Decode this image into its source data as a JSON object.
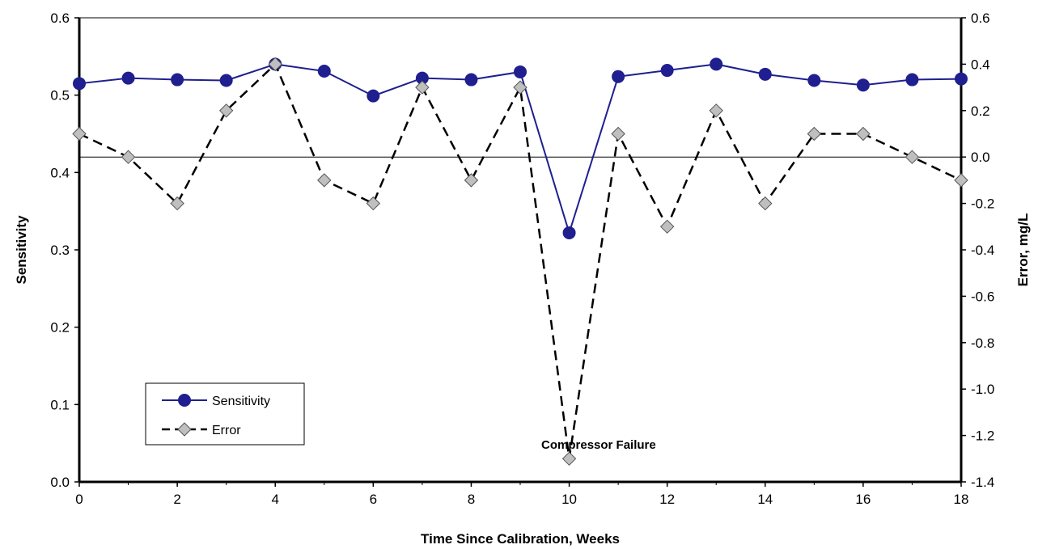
{
  "chart_data": {
    "type": "line",
    "xlabel": "Time Since Calibration, Weeks",
    "ylabel_left": "Sensitivity",
    "ylabel_right": "Error, mg/L",
    "xlim": [
      0,
      18
    ],
    "ylim_left": [
      0.0,
      0.6
    ],
    "ylim_right": [
      -1.4,
      0.6
    ],
    "x_ticks": [
      "0",
      "2",
      "4",
      "6",
      "8",
      "10",
      "12",
      "14",
      "16",
      "18"
    ],
    "y_left_ticks": [
      "0.0",
      "0.1",
      "0.2",
      "0.3",
      "0.4",
      "0.5",
      "0.6"
    ],
    "y_right_ticks": [
      "-1.4",
      "-1.2",
      "-1.0",
      "-0.8",
      "-0.6",
      "-0.4",
      "-0.2",
      "0.0",
      "0.2",
      "0.4",
      "0.6"
    ],
    "grid": false,
    "legend_position": "lower-left",
    "series": [
      {
        "name": "Sensitivity",
        "axis": "left",
        "color": "#1f1f8f",
        "marker": "circle",
        "line": "solid",
        "x": [
          0,
          1,
          2,
          3,
          4,
          5,
          6,
          7,
          8,
          9,
          10,
          11,
          12,
          13,
          14,
          15,
          16,
          17,
          18
        ],
        "values": [
          0.515,
          0.522,
          0.52,
          0.519,
          0.54,
          0.531,
          0.499,
          0.522,
          0.52,
          0.53,
          0.322,
          0.524,
          0.532,
          0.54,
          0.527,
          0.519,
          0.513,
          0.52,
          0.521
        ]
      },
      {
        "name": "Error",
        "axis": "right",
        "color": "#000000",
        "marker_fill": "#bfbfbf",
        "marker": "diamond",
        "line": "dashed",
        "x": [
          0,
          1,
          2,
          3,
          4,
          5,
          6,
          7,
          8,
          9,
          10,
          11,
          12,
          13,
          14,
          15,
          16,
          17,
          18
        ],
        "values": [
          0.1,
          0.0,
          -0.2,
          0.2,
          0.4,
          -0.1,
          -0.2,
          0.3,
          -0.1,
          0.3,
          -1.3,
          0.1,
          -0.3,
          0.2,
          -0.2,
          0.1,
          0.1,
          0.0,
          -0.1
        ]
      }
    ],
    "reference_line": {
      "axis": "right",
      "value": 0.0
    },
    "annotations": [
      {
        "text": "Compressor Failure",
        "x": 10.6,
        "y_right": -1.24
      }
    ]
  }
}
